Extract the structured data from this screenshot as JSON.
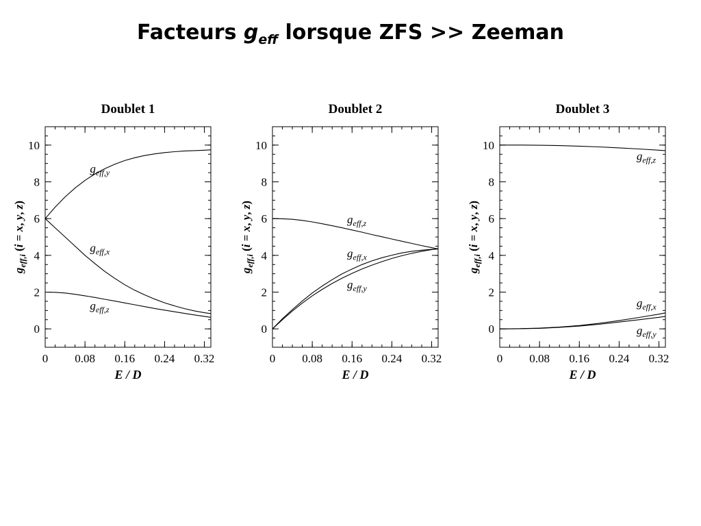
{
  "page": {
    "title_main": "Facteurs ",
    "title_g": "g",
    "title_sub": "eff",
    "title_rest": " lorsque ZFS >> Zeeman"
  },
  "chart_data": [
    {
      "type": "line",
      "title": "Doublet 1",
      "xlabel": "E / D",
      "ylabel": "g eff,i (i = x, y, z)",
      "xlim": [
        0,
        0.333
      ],
      "ylim": [
        -1,
        11
      ],
      "xticks": [
        0,
        0.08,
        0.16,
        0.24,
        0.32
      ],
      "xtick_labels": [
        "0",
        "0.08",
        "0.16",
        "0.24",
        "0.32"
      ],
      "yticks": [
        0,
        2,
        4,
        6,
        8,
        10
      ],
      "ytick_labels": [
        "0",
        "2",
        "4",
        "6",
        "8",
        "10"
      ],
      "grid": false,
      "series": [
        {
          "name": "g eff,y",
          "label_g": "g",
          "label_sub": "eff,y",
          "label_at": [
            0.09,
            8.5
          ],
          "x": [
            0,
            0.02,
            0.04,
            0.06,
            0.08,
            0.1,
            0.12,
            0.14,
            0.16,
            0.18,
            0.2,
            0.22,
            0.24,
            0.26,
            0.28,
            0.3,
            0.32,
            0.333
          ],
          "y": [
            6.0,
            6.62,
            7.18,
            7.66,
            8.08,
            8.43,
            8.72,
            8.96,
            9.16,
            9.31,
            9.43,
            9.52,
            9.59,
            9.64,
            9.68,
            9.7,
            9.72,
            9.74
          ]
        },
        {
          "name": "g eff,x",
          "label_g": "g",
          "label_sub": "eff,x",
          "label_at": [
            0.09,
            4.2
          ],
          "x": [
            0,
            0.02,
            0.04,
            0.06,
            0.08,
            0.1,
            0.12,
            0.14,
            0.16,
            0.18,
            0.2,
            0.22,
            0.24,
            0.26,
            0.28,
            0.3,
            0.32,
            0.333
          ],
          "y": [
            6.0,
            5.5,
            5.0,
            4.5,
            4.0,
            3.55,
            3.12,
            2.75,
            2.4,
            2.1,
            1.85,
            1.62,
            1.42,
            1.25,
            1.1,
            0.98,
            0.88,
            0.83
          ]
        },
        {
          "name": "g eff,z",
          "label_g": "g",
          "label_sub": "eff,z",
          "label_at": [
            0.09,
            1.05
          ],
          "x": [
            0,
            0.02,
            0.04,
            0.06,
            0.08,
            0.1,
            0.12,
            0.14,
            0.16,
            0.18,
            0.2,
            0.22,
            0.24,
            0.26,
            0.28,
            0.3,
            0.32,
            0.333
          ],
          "y": [
            2.0,
            1.99,
            1.95,
            1.88,
            1.8,
            1.71,
            1.61,
            1.51,
            1.41,
            1.31,
            1.21,
            1.11,
            1.02,
            0.93,
            0.84,
            0.76,
            0.68,
            0.63
          ]
        }
      ]
    },
    {
      "type": "line",
      "title": "Doublet 2",
      "xlabel": "E / D",
      "ylabel": "g eff,i (i = x, y, z)",
      "xlim": [
        0,
        0.333
      ],
      "ylim": [
        -1,
        11
      ],
      "xticks": [
        0,
        0.08,
        0.16,
        0.24,
        0.32
      ],
      "xtick_labels": [
        "0",
        "0.08",
        "0.16",
        "0.24",
        "0.32"
      ],
      "yticks": [
        0,
        2,
        4,
        6,
        8,
        10
      ],
      "ytick_labels": [
        "0",
        "2",
        "4",
        "6",
        "8",
        "10"
      ],
      "grid": false,
      "series": [
        {
          "name": "g eff,z",
          "label_g": "g",
          "label_sub": "eff,z",
          "label_at": [
            0.15,
            5.75
          ],
          "x": [
            0,
            0.02,
            0.04,
            0.06,
            0.08,
            0.1,
            0.12,
            0.14,
            0.16,
            0.18,
            0.2,
            0.22,
            0.24,
            0.26,
            0.28,
            0.3,
            0.32,
            0.333
          ],
          "y": [
            6.0,
            5.99,
            5.96,
            5.9,
            5.82,
            5.72,
            5.61,
            5.5,
            5.38,
            5.26,
            5.13,
            5.01,
            4.89,
            4.77,
            4.65,
            4.53,
            4.42,
            4.35
          ]
        },
        {
          "name": "g eff,x",
          "label_g": "g",
          "label_sub": "eff,x",
          "label_at": [
            0.15,
            3.9
          ],
          "x": [
            0,
            0.02,
            0.04,
            0.06,
            0.08,
            0.1,
            0.12,
            0.14,
            0.16,
            0.18,
            0.2,
            0.22,
            0.24,
            0.26,
            0.28,
            0.3,
            0.32,
            0.333
          ],
          "y": [
            0.0,
            0.55,
            1.05,
            1.52,
            1.95,
            2.33,
            2.68,
            2.99,
            3.26,
            3.5,
            3.7,
            3.87,
            4.01,
            4.13,
            4.22,
            4.28,
            4.33,
            4.35
          ]
        },
        {
          "name": "g eff,y",
          "label_g": "g",
          "label_sub": "eff,y",
          "label_at": [
            0.15,
            2.2
          ],
          "x": [
            0,
            0.02,
            0.04,
            0.06,
            0.08,
            0.1,
            0.12,
            0.14,
            0.16,
            0.18,
            0.2,
            0.22,
            0.24,
            0.26,
            0.28,
            0.3,
            0.32,
            0.333
          ],
          "y": [
            0.0,
            0.5,
            0.97,
            1.4,
            1.8,
            2.15,
            2.47,
            2.76,
            3.02,
            3.26,
            3.47,
            3.66,
            3.83,
            3.98,
            4.11,
            4.22,
            4.31,
            4.35
          ]
        }
      ]
    },
    {
      "type": "line",
      "title": "Doublet 3",
      "xlabel": "E / D",
      "ylabel": "g eff,i (i = x, y, z)",
      "xlim": [
        0,
        0.333
      ],
      "ylim": [
        -1,
        11
      ],
      "xticks": [
        0,
        0.08,
        0.16,
        0.24,
        0.32
      ],
      "xtick_labels": [
        "0",
        "0.08",
        "0.16",
        "0.24",
        "0.32"
      ],
      "yticks": [
        0,
        2,
        4,
        6,
        8,
        10
      ],
      "ytick_labels": [
        "0",
        "2",
        "4",
        "6",
        "8",
        "10"
      ],
      "grid": false,
      "series": [
        {
          "name": "g eff,z",
          "label_g": "g",
          "label_sub": "eff,z",
          "label_at": [
            0.275,
            9.2
          ],
          "x": [
            0,
            0.04,
            0.08,
            0.12,
            0.16,
            0.2,
            0.24,
            0.28,
            0.32,
            0.333
          ],
          "y": [
            10.0,
            10.0,
            9.99,
            9.97,
            9.94,
            9.9,
            9.85,
            9.79,
            9.72,
            9.7
          ]
        },
        {
          "name": "g eff,x",
          "label_g": "g",
          "label_sub": "eff,x",
          "label_at": [
            0.275,
            1.2
          ],
          "x": [
            0,
            0.04,
            0.08,
            0.12,
            0.16,
            0.2,
            0.24,
            0.28,
            0.32,
            0.333
          ],
          "y": [
            0.0,
            0.01,
            0.04,
            0.1,
            0.18,
            0.3,
            0.45,
            0.62,
            0.8,
            0.87
          ]
        },
        {
          "name": "g eff,y",
          "label_g": "g",
          "label_sub": "eff,y",
          "label_at": [
            0.275,
            -0.3
          ],
          "x": [
            0,
            0.04,
            0.08,
            0.12,
            0.16,
            0.2,
            0.24,
            0.28,
            0.32,
            0.333
          ],
          "y": [
            0.0,
            0.01,
            0.03,
            0.08,
            0.15,
            0.25,
            0.37,
            0.5,
            0.63,
            0.68
          ]
        }
      ]
    }
  ]
}
